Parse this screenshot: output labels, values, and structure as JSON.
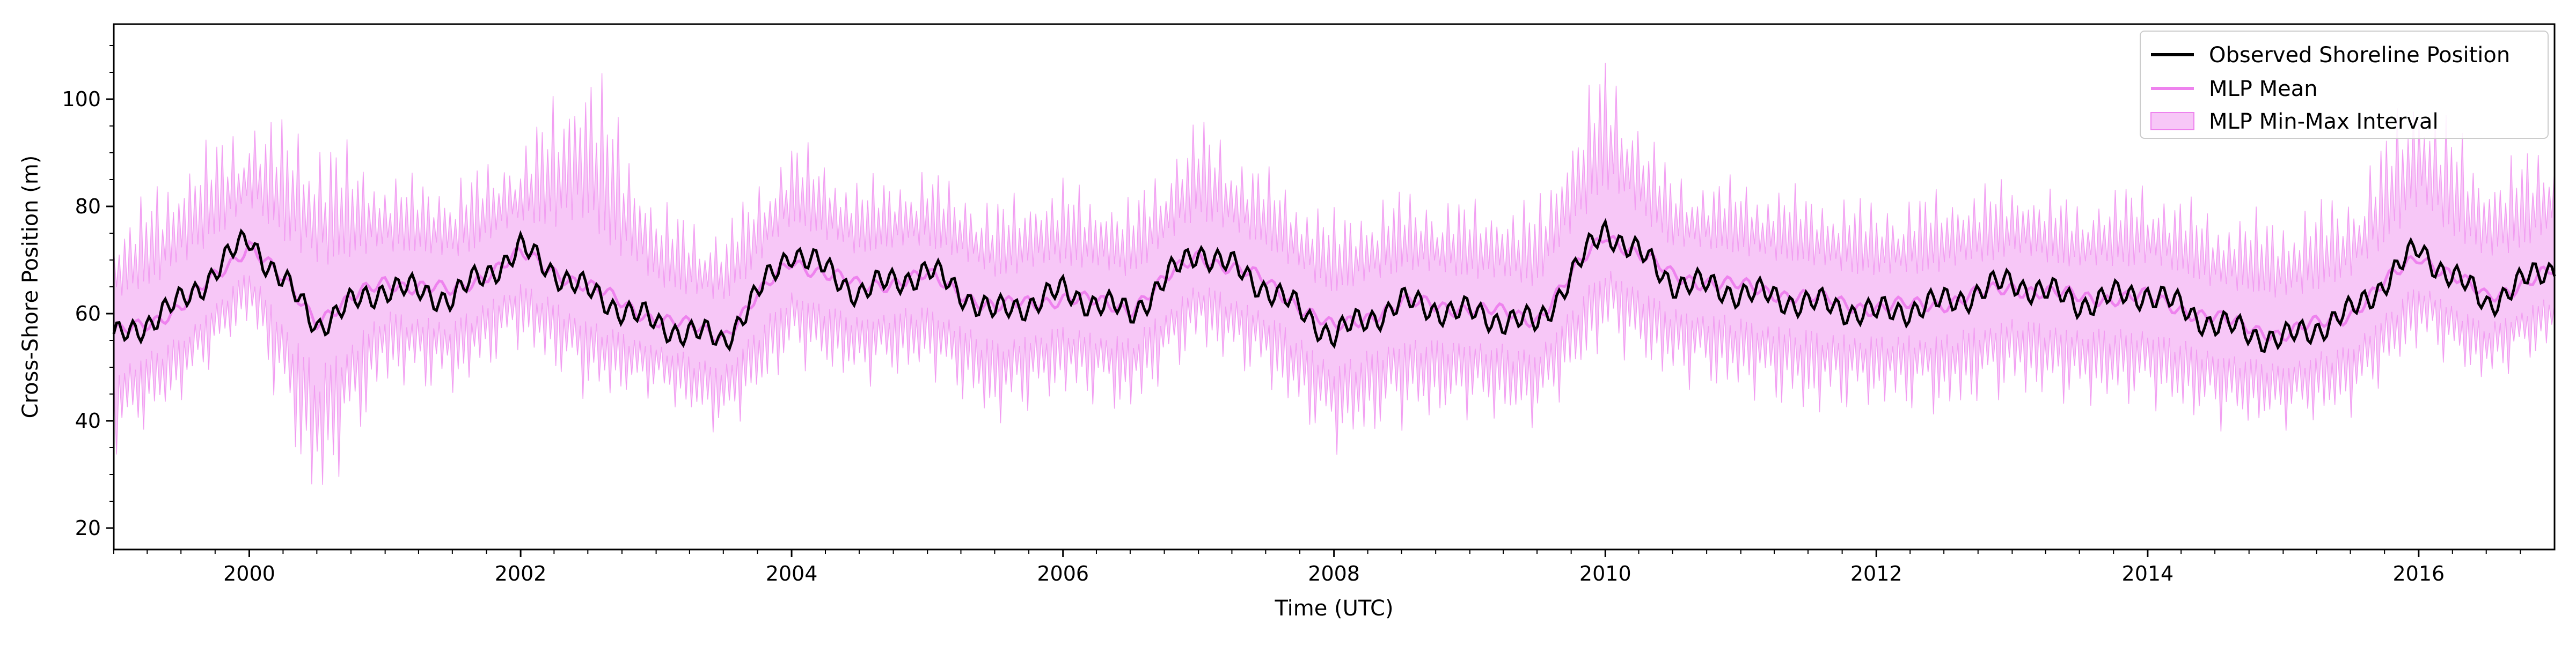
{
  "chart_data": {
    "type": "line",
    "title": "",
    "xlabel": "Time (UTC)",
    "ylabel": "Cross-Shore Position (m)",
    "x_range": [
      "1999-01-01",
      "2017-01-01"
    ],
    "ylim": [
      16,
      114
    ],
    "x_ticks": [
      "2000",
      "2002",
      "2004",
      "2006",
      "2008",
      "2010",
      "2012",
      "2014",
      "2016"
    ],
    "y_ticks": [
      20,
      40,
      60,
      80,
      100
    ],
    "grid": false,
    "legend_position": "top-right",
    "series": [
      {
        "name": "Observed Shoreline Position",
        "style": "line",
        "color": "#000000",
        "x": [
          "1999-01-01",
          "1999-07-01",
          "2000-01-01",
          "2000-07-01",
          "2001-01-01",
          "2001-07-01",
          "2002-01-01",
          "2002-07-01",
          "2003-01-01",
          "2003-07-01",
          "2004-01-01",
          "2004-07-01",
          "2005-01-01",
          "2005-07-01",
          "2006-01-01",
          "2006-07-01",
          "2007-01-01",
          "2007-07-01",
          "2008-01-01",
          "2008-07-01",
          "2009-01-01",
          "2009-07-01",
          "2010-01-01",
          "2010-07-01",
          "2011-01-01",
          "2011-07-01",
          "2012-01-01",
          "2012-07-01",
          "2013-01-01",
          "2013-07-01",
          "2014-01-01",
          "2014-07-01",
          "2015-01-01",
          "2015-07-01",
          "2016-01-01",
          "2016-07-01",
          "2017-01-01"
        ],
        "y": [
          55,
          62,
          74,
          58,
          65,
          63,
          72,
          64,
          58,
          55,
          72,
          64,
          68,
          60,
          64,
          60,
          72,
          65,
          56,
          62,
          60,
          58,
          76,
          66,
          64,
          62,
          60,
          62,
          66,
          62,
          64,
          58,
          55,
          60,
          72,
          62,
          69
        ]
      },
      {
        "name": "MLP Mean",
        "style": "line",
        "color": "#ee82ee",
        "x": [
          "1999-01-01",
          "1999-07-01",
          "2000-01-01",
          "2000-07-01",
          "2001-01-01",
          "2001-07-01",
          "2002-01-01",
          "2002-07-01",
          "2003-01-01",
          "2003-07-01",
          "2004-01-01",
          "2004-07-01",
          "2005-01-01",
          "2005-07-01",
          "2006-01-01",
          "2006-07-01",
          "2007-01-01",
          "2007-07-01",
          "2008-01-01",
          "2008-07-01",
          "2009-01-01",
          "2009-07-01",
          "2010-01-01",
          "2010-07-01",
          "2011-01-01",
          "2011-07-01",
          "2012-01-01",
          "2012-07-01",
          "2013-01-01",
          "2013-07-01",
          "2014-01-01",
          "2014-07-01",
          "2015-01-01",
          "2015-07-01",
          "2016-01-01",
          "2016-07-01",
          "2017-01-01"
        ],
        "y": [
          56,
          61,
          73,
          59,
          66,
          64,
          71,
          65,
          59,
          56,
          70,
          65,
          67,
          61,
          63,
          61,
          71,
          66,
          57,
          62,
          61,
          59,
          75,
          67,
          65,
          63,
          61,
          62,
          65,
          63,
          63,
          59,
          56,
          60,
          71,
          63,
          68
        ]
      },
      {
        "name": "MLP Min-Max Interval",
        "style": "band",
        "color": "#ee82ee",
        "x": [
          "1999-01-01",
          "1999-07-01",
          "2000-01-01",
          "2000-07-01",
          "2001-01-01",
          "2001-07-01",
          "2002-01-01",
          "2002-07-01",
          "2003-01-01",
          "2003-07-01",
          "2004-01-01",
          "2004-07-01",
          "2005-01-01",
          "2005-07-01",
          "2006-01-01",
          "2006-07-01",
          "2007-01-01",
          "2007-07-01",
          "2008-01-01",
          "2008-07-01",
          "2009-01-01",
          "2009-07-01",
          "2010-01-01",
          "2010-07-01",
          "2011-01-01",
          "2011-07-01",
          "2012-01-01",
          "2012-07-01",
          "2013-01-01",
          "2013-07-01",
          "2014-01-01",
          "2014-07-01",
          "2015-01-01",
          "2015-07-01",
          "2016-01-01",
          "2016-07-01",
          "2017-01-01"
        ],
        "lower": [
          35,
          45,
          60,
          22,
          48,
          46,
          55,
          45,
          46,
          38,
          52,
          48,
          50,
          40,
          46,
          42,
          55,
          48,
          35,
          40,
          42,
          40,
          55,
          48,
          46,
          42,
          44,
          42,
          46,
          44,
          44,
          40,
          40,
          42,
          55,
          48,
          55
        ],
        "upper": [
          75,
          88,
          96,
          95,
          85,
          84,
          90,
          110,
          80,
          75,
          92,
          84,
          86,
          80,
          84,
          80,
          96,
          86,
          78,
          82,
          80,
          80,
          108,
          85,
          84,
          82,
          80,
          82,
          84,
          80,
          84,
          78,
          78,
          82,
          104,
          86,
          92
        ]
      }
    ]
  }
}
